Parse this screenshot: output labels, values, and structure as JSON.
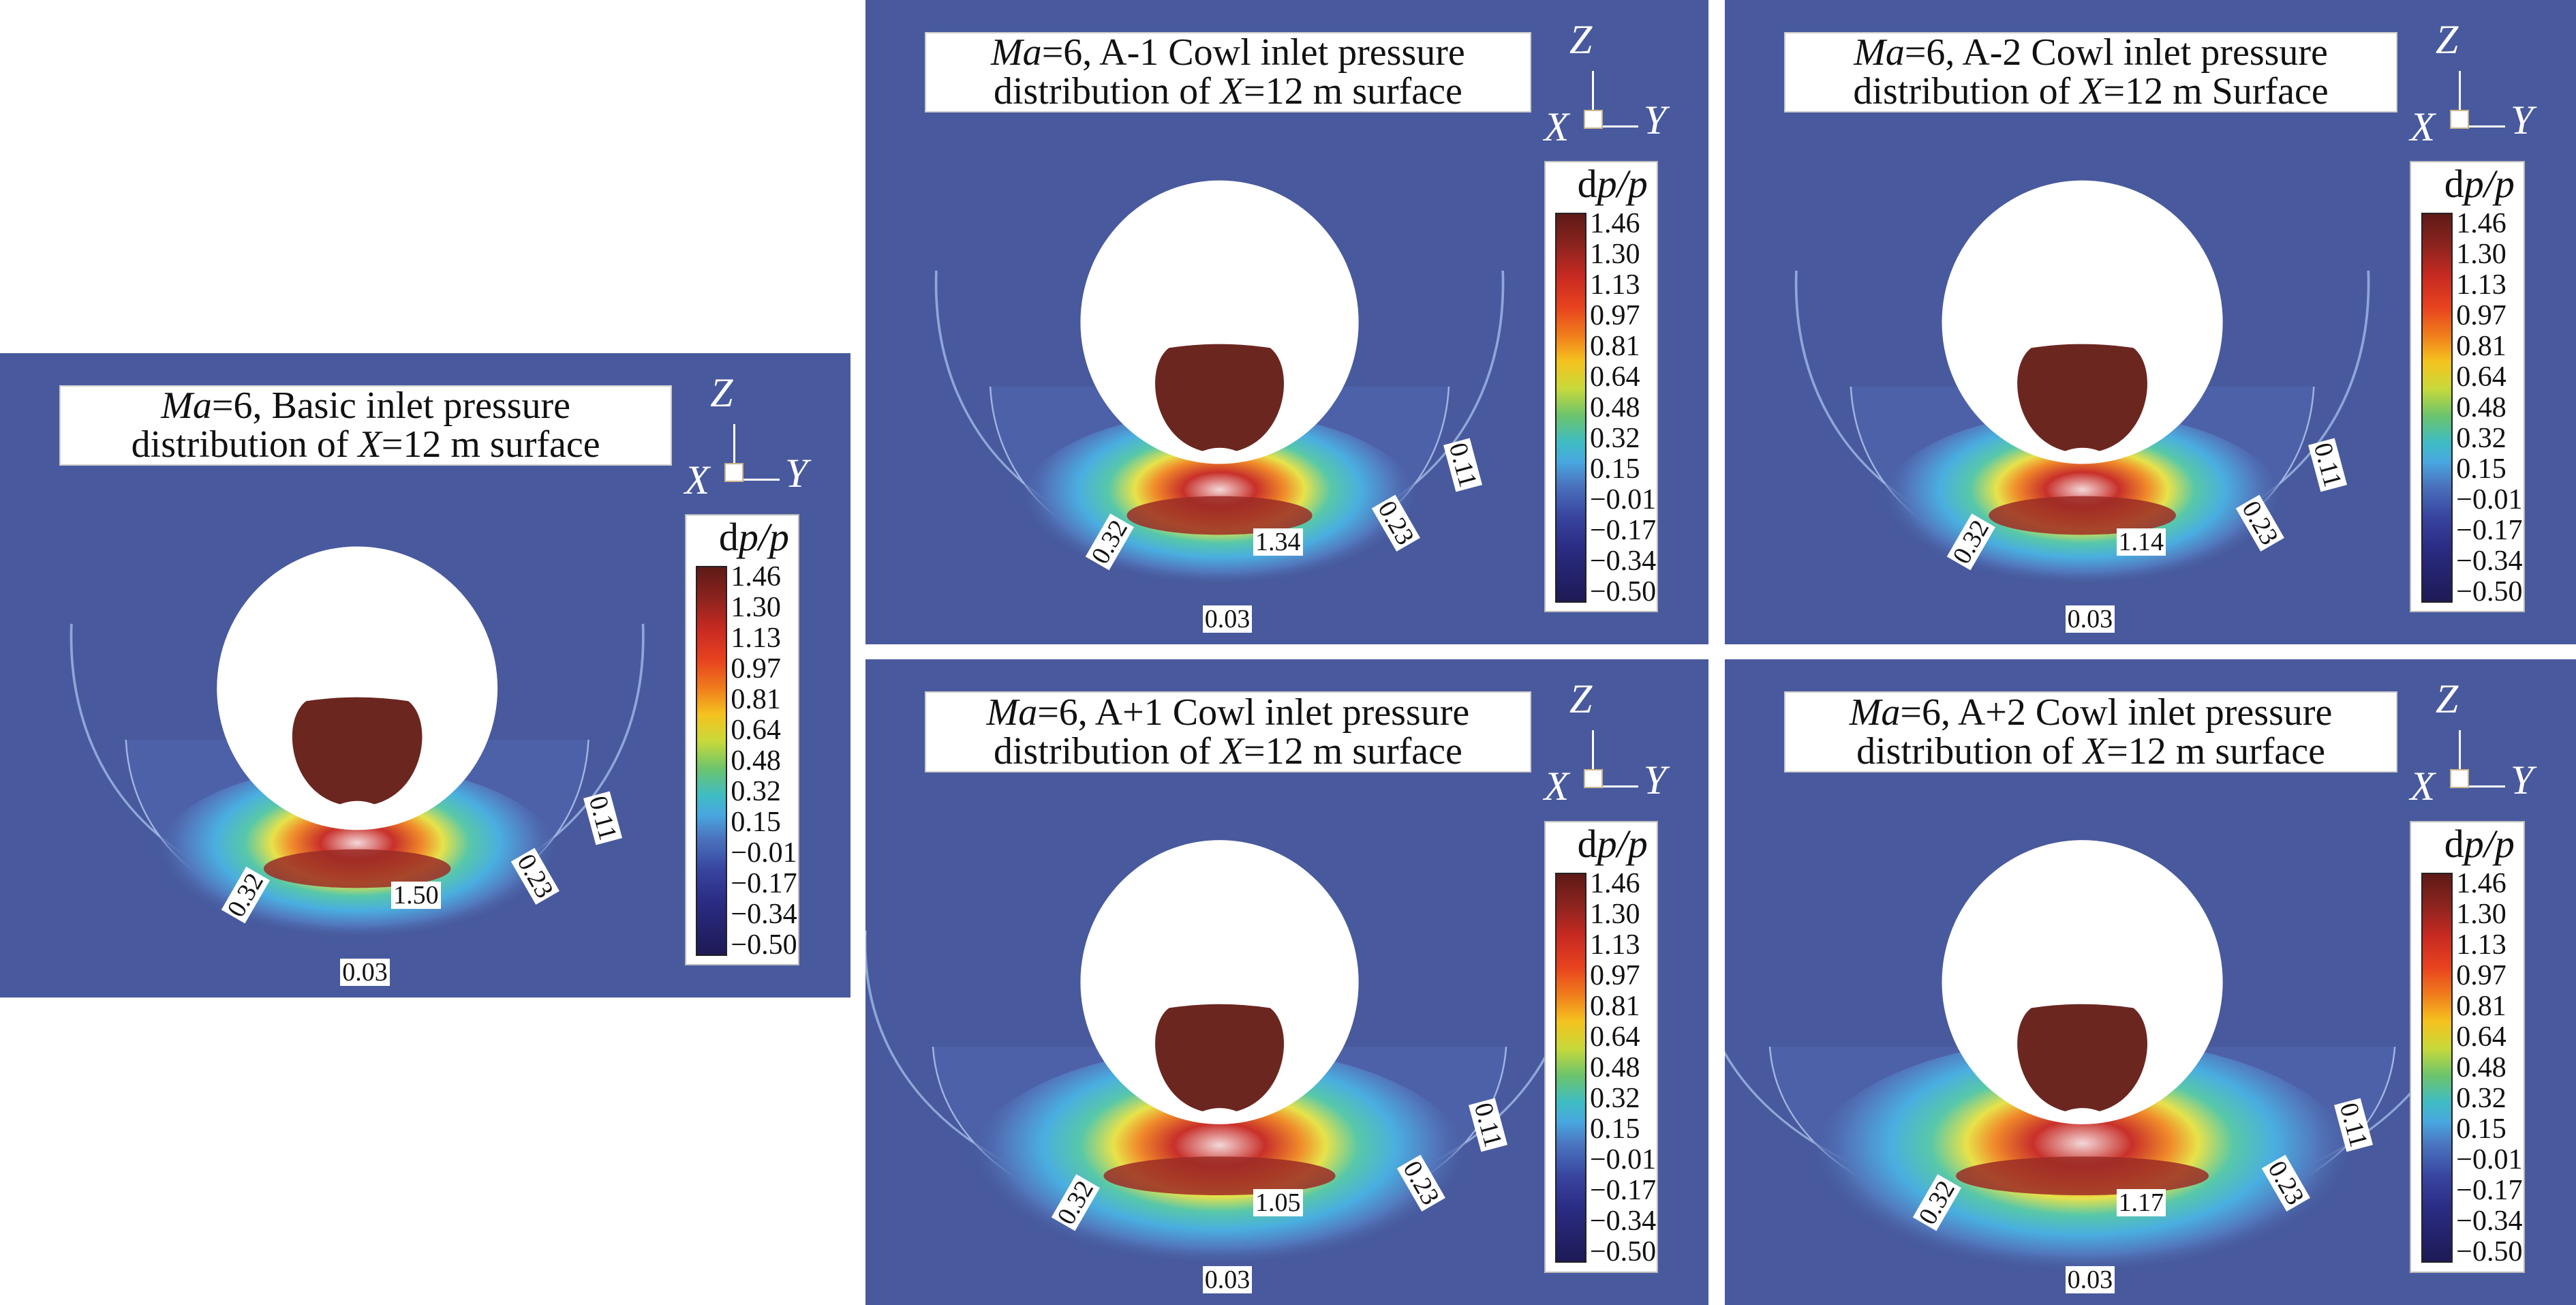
{
  "colorbar": {
    "title_prefix": "d",
    "title_var": "p/p",
    "levels": [
      "1.46",
      "1.30",
      "1.13",
      "0.97",
      "0.81",
      "0.64",
      "0.48",
      "0.32",
      "0.15",
      "−0.01",
      "−0.17",
      "−0.34",
      "−0.50"
    ]
  },
  "axes": {
    "z": "Z",
    "x": "X",
    "y": "Y"
  },
  "panels": [
    {
      "id": "basic",
      "title_line1": [
        {
          "text": "Ma",
          "italic": true
        },
        {
          "text": "=6, Basic inlet pressure",
          "italic": false
        }
      ],
      "title_line2": [
        {
          "text": "distribution of  ",
          "italic": false
        },
        {
          "text": "X",
          "italic": true
        },
        {
          "text": "=12 m surface",
          "italic": false
        }
      ],
      "contour_labels": [
        "0.32",
        "1.50",
        "0.23",
        "0.11",
        "0.03"
      ]
    },
    {
      "id": "a-1",
      "title_line1": [
        {
          "text": "Ma",
          "italic": true
        },
        {
          "text": "=6, A-1 Cowl inlet pressure",
          "italic": false
        }
      ],
      "title_line2": [
        {
          "text": "distribution of ",
          "italic": false
        },
        {
          "text": "X",
          "italic": true
        },
        {
          "text": "=12 m surface",
          "italic": false
        }
      ],
      "contour_labels": [
        "0.32",
        "1.34",
        "0.23",
        "0.11",
        "0.03"
      ]
    },
    {
      "id": "a-2",
      "title_line1": [
        {
          "text": "Ma",
          "italic": true
        },
        {
          "text": "=6, A-2 Cowl inlet pressure",
          "italic": false
        }
      ],
      "title_line2": [
        {
          "text": "distribution of ",
          "italic": false
        },
        {
          "text": "X",
          "italic": true
        },
        {
          "text": "=12 m Surface",
          "italic": false
        }
      ],
      "contour_labels": [
        "0.32",
        "1.14",
        "0.23",
        "0.11",
        "0.03"
      ]
    },
    {
      "id": "a+1",
      "title_line1": [
        {
          "text": "Ma",
          "italic": true
        },
        {
          "text": "=6, A+1 Cowl inlet pressure",
          "italic": false
        }
      ],
      "title_line2": [
        {
          "text": "distribution of ",
          "italic": false
        },
        {
          "text": "X",
          "italic": true
        },
        {
          "text": "=12 m surface",
          "italic": false
        }
      ],
      "contour_labels": [
        "0.32",
        "1.05",
        "0.23",
        "0.11",
        "0.03"
      ]
    },
    {
      "id": "a+2",
      "title_line1": [
        {
          "text": "Ma",
          "italic": true
        },
        {
          "text": "=6, A+2 Cowl inlet pressure",
          "italic": false
        }
      ],
      "title_line2": [
        {
          "text": "distribution of ",
          "italic": false
        },
        {
          "text": "X",
          "italic": true
        },
        {
          "text": "=12 m surface",
          "italic": false
        }
      ],
      "contour_labels": [
        "0.32",
        "1.17",
        "0.23",
        "0.11",
        "0.03"
      ]
    }
  ]
}
